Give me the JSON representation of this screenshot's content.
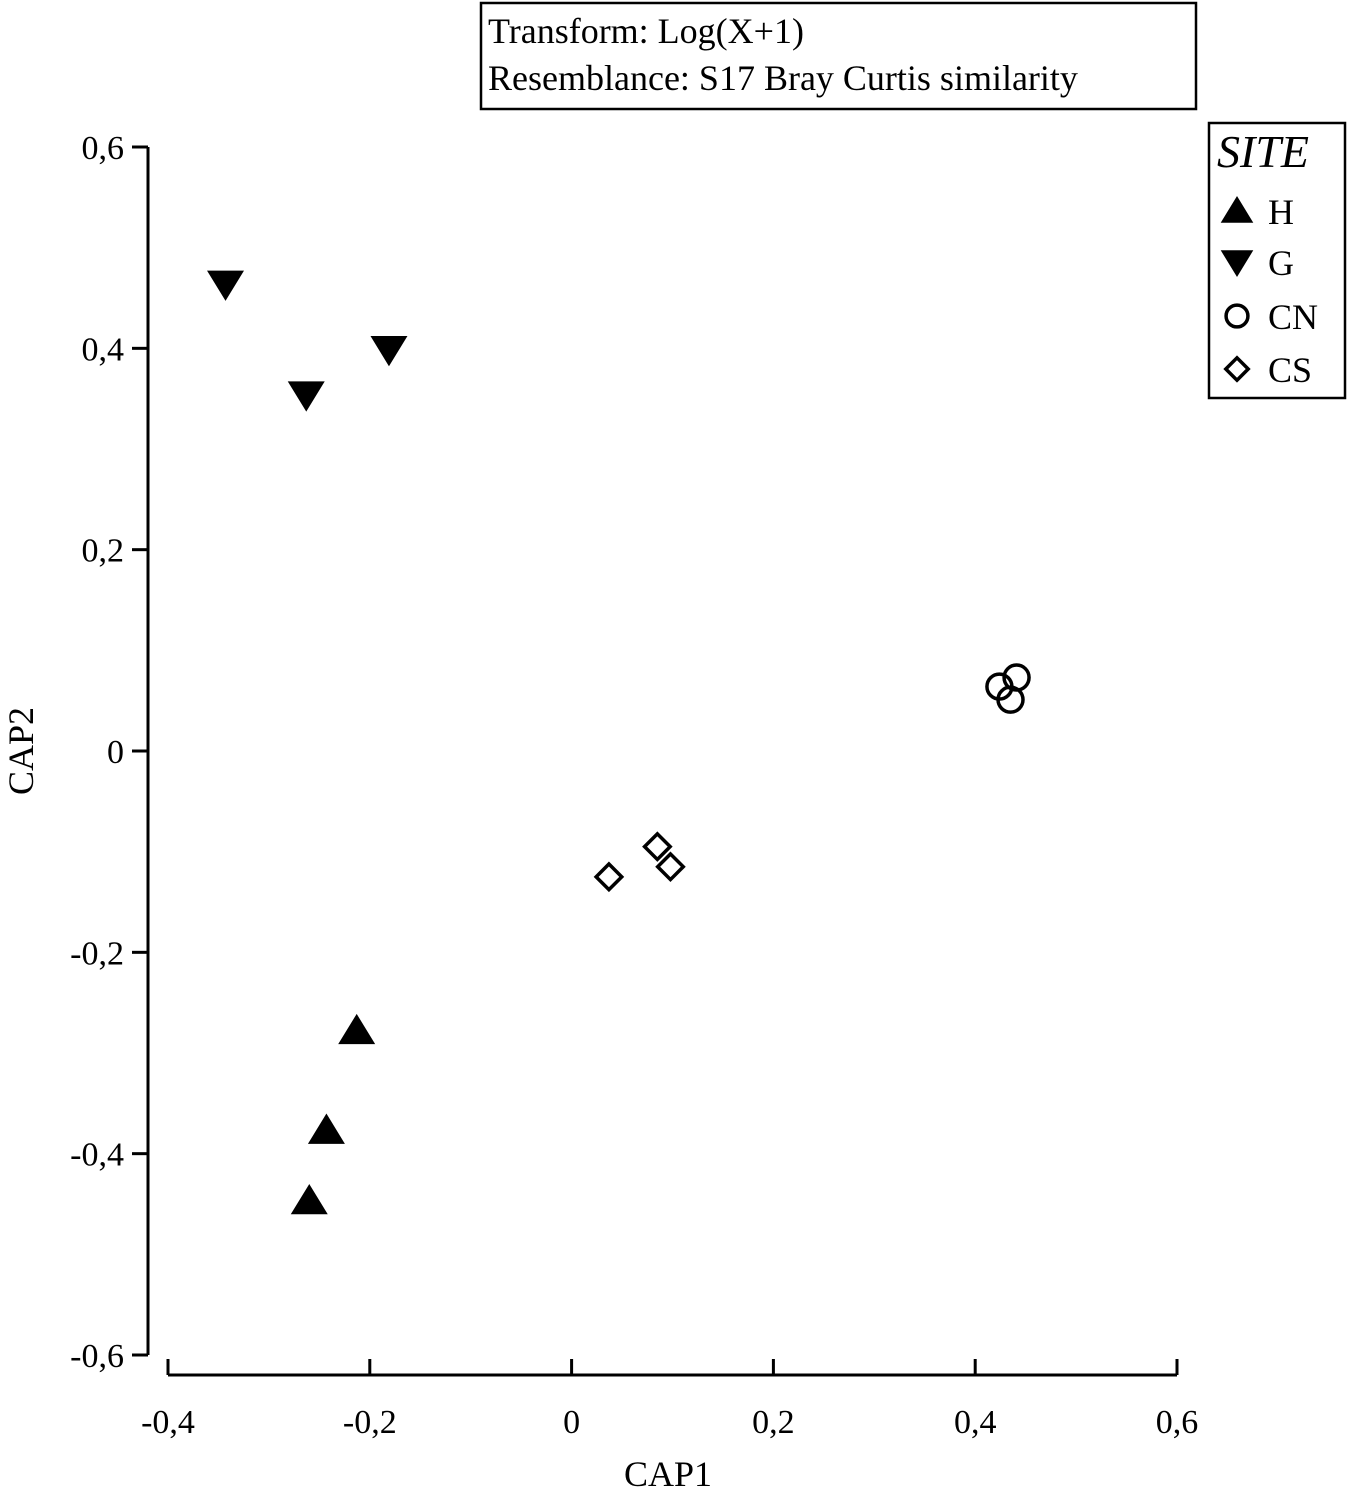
{
  "info_box": {
    "line1": "Transform: Log(X+1)",
    "line2": "Resemblance: S17 Bray Curtis similarity"
  },
  "chart_data": {
    "type": "scatter",
    "title": "",
    "xlabel": "CAP1",
    "ylabel": "CAP2",
    "xlim": [
      -0.4,
      0.6
    ],
    "ylim": [
      -0.6,
      0.6
    ],
    "x_ticks": [
      -0.4,
      -0.2,
      0,
      0.2,
      0.4,
      0.6
    ],
    "x_tick_labels": [
      "-0,4",
      "-0,2",
      "0",
      "0,2",
      "0,4",
      "0,6"
    ],
    "y_ticks": [
      0.6,
      0.4,
      0.2,
      0,
      -0.2,
      -0.4,
      -0.6
    ],
    "y_tick_labels": [
      "0,6",
      "0,4",
      "0,2",
      "0",
      "-0,2",
      "-0,4",
      "-0,6"
    ],
    "grid": false,
    "legend": {
      "title": "SITE",
      "placement": "top-right",
      "boxed": true
    },
    "series": [
      {
        "name": "H",
        "marker": "triangle-up",
        "filled": true,
        "color": "#000000",
        "points": [
          [
            -0.213,
            -0.278
          ],
          [
            -0.243,
            -0.377
          ],
          [
            -0.26,
            -0.447
          ]
        ]
      },
      {
        "name": "G",
        "marker": "triangle-down",
        "filled": true,
        "color": "#000000",
        "points": [
          [
            -0.343,
            0.464
          ],
          [
            -0.263,
            0.354
          ],
          [
            -0.181,
            0.399
          ]
        ]
      },
      {
        "name": "CN",
        "marker": "circle",
        "filled": false,
        "color": "#000000",
        "points": [
          [
            0.424,
            0.064
          ],
          [
            0.441,
            0.073
          ],
          [
            0.435,
            0.051
          ]
        ]
      },
      {
        "name": "CS",
        "marker": "diamond",
        "filled": false,
        "color": "#000000",
        "points": [
          [
            0.037,
            -0.125
          ],
          [
            0.085,
            -0.095
          ],
          [
            0.098,
            -0.115
          ]
        ]
      }
    ]
  }
}
